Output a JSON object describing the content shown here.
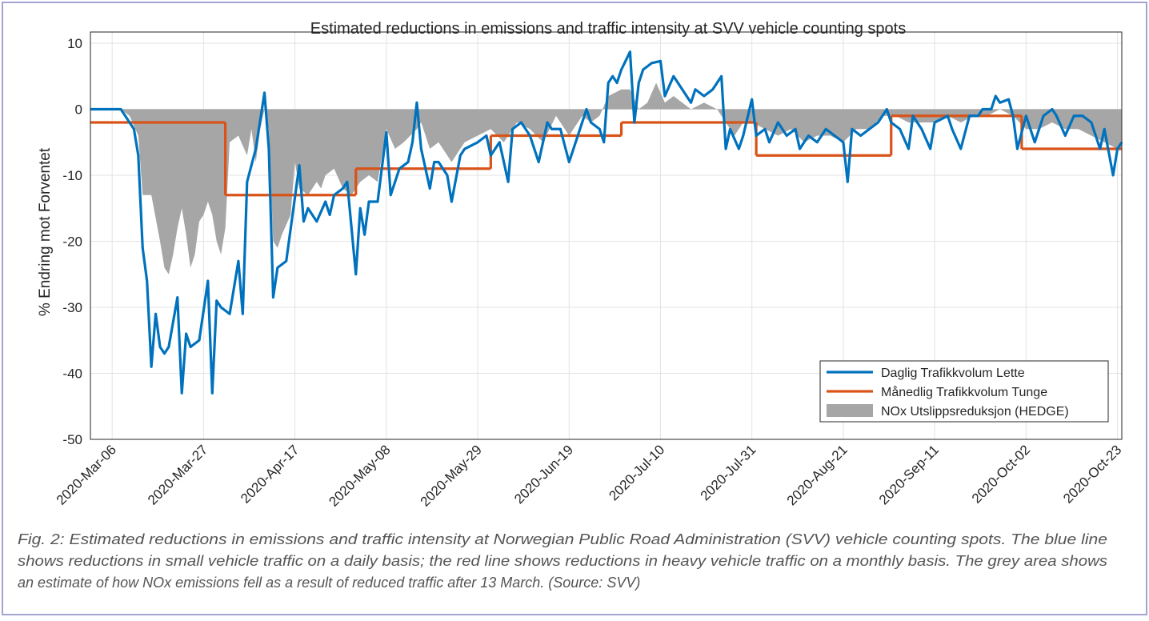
{
  "chart_data": {
    "type": "line",
    "title": "Estimated reductions in emissions and traffic intensity at SVV vehicle counting spots",
    "ylabel": "% Endring mot Forventet",
    "xlim": [
      "2020-03-01",
      "2020-10-24"
    ],
    "ylim": [
      -50,
      11.7
    ],
    "yticks": [
      -50,
      -40,
      -30,
      -20,
      -10,
      0,
      10
    ],
    "xticks": [
      {
        "value": "2020-03-06",
        "label": "2020-Mar-06"
      },
      {
        "value": "2020-03-27",
        "label": "2020-Mar-27"
      },
      {
        "value": "2020-04-17",
        "label": "2020-Apr-17"
      },
      {
        "value": "2020-05-08",
        "label": "2020-May-08"
      },
      {
        "value": "2020-05-29",
        "label": "2020-May-29"
      },
      {
        "value": "2020-06-19",
        "label": "2020-Jun-19"
      },
      {
        "value": "2020-07-10",
        "label": "2020-Jul-10"
      },
      {
        "value": "2020-07-31",
        "label": "2020-Jul-31"
      },
      {
        "value": "2020-08-21",
        "label": "2020-Aug-21"
      },
      {
        "value": "2020-09-11",
        "label": "2020-Sep-11"
      },
      {
        "value": "2020-10-02",
        "label": "2020-Oct-02"
      },
      {
        "value": "2020-10-23",
        "label": "2020-Oct-23"
      }
    ],
    "grid": true,
    "legend": "lower right",
    "series": [
      {
        "name": "Daglig Trafikkvolum Lette",
        "color": "#0072bd",
        "style": "line",
        "x": [
          "2020-03-01",
          "2020-03-08",
          "2020-03-09",
          "2020-03-11",
          "2020-03-12",
          "2020-03-13",
          "2020-03-14",
          "2020-03-15",
          "2020-03-16",
          "2020-03-17",
          "2020-03-18",
          "2020-03-19",
          "2020-03-21",
          "2020-03-22",
          "2020-03-23",
          "2020-03-24",
          "2020-03-26",
          "2020-03-28",
          "2020-03-29",
          "2020-03-30",
          "2020-03-31",
          "2020-04-02",
          "2020-04-04",
          "2020-04-05",
          "2020-04-06",
          "2020-04-08",
          "2020-04-10",
          "2020-04-11",
          "2020-04-12",
          "2020-04-13",
          "2020-04-15",
          "2020-04-18",
          "2020-04-19",
          "2020-04-20",
          "2020-04-22",
          "2020-04-24",
          "2020-04-25",
          "2020-04-26",
          "2020-04-28",
          "2020-04-29",
          "2020-05-01",
          "2020-05-02",
          "2020-05-03",
          "2020-05-04",
          "2020-05-06",
          "2020-05-08",
          "2020-05-09",
          "2020-05-11",
          "2020-05-13",
          "2020-05-14",
          "2020-05-15",
          "2020-05-16",
          "2020-05-18",
          "2020-05-19",
          "2020-05-20",
          "2020-05-22",
          "2020-05-23",
          "2020-05-25",
          "2020-05-26",
          "2020-05-29",
          "2020-05-31",
          "2020-06-01",
          "2020-06-03",
          "2020-06-05",
          "2020-06-06",
          "2020-06-08",
          "2020-06-10",
          "2020-06-12",
          "2020-06-14",
          "2020-06-15",
          "2020-06-17",
          "2020-06-19",
          "2020-06-21",
          "2020-06-23",
          "2020-06-24",
          "2020-06-26",
          "2020-06-27",
          "2020-06-28",
          "2020-06-29",
          "2020-06-30",
          "2020-07-01",
          "2020-07-03",
          "2020-07-04",
          "2020-07-05",
          "2020-07-06",
          "2020-07-08",
          "2020-07-10",
          "2020-07-11",
          "2020-07-13",
          "2020-07-14",
          "2020-07-15",
          "2020-07-17",
          "2020-07-18",
          "2020-07-20",
          "2020-07-22",
          "2020-07-24",
          "2020-07-25",
          "2020-07-26",
          "2020-07-28",
          "2020-07-29",
          "2020-07-31",
          "2020-08-01",
          "2020-08-03",
          "2020-08-04",
          "2020-08-06",
          "2020-08-08",
          "2020-08-10",
          "2020-08-11",
          "2020-08-13",
          "2020-08-15",
          "2020-08-17",
          "2020-08-19",
          "2020-08-21",
          "2020-08-22",
          "2020-08-23",
          "2020-08-25",
          "2020-08-27",
          "2020-08-29",
          "2020-08-31",
          "2020-09-01",
          "2020-09-03",
          "2020-09-05",
          "2020-09-06",
          "2020-09-08",
          "2020-09-10",
          "2020-09-11",
          "2020-09-14",
          "2020-09-15",
          "2020-09-17",
          "2020-09-19",
          "2020-09-21",
          "2020-09-22",
          "2020-09-24",
          "2020-09-25",
          "2020-09-26",
          "2020-09-28",
          "2020-09-29",
          "2020-09-30",
          "2020-10-02",
          "2020-10-04",
          "2020-10-06",
          "2020-10-08",
          "2020-10-09",
          "2020-10-11",
          "2020-10-13",
          "2020-10-15",
          "2020-10-17",
          "2020-10-19",
          "2020-10-20",
          "2020-10-22",
          "2020-10-23",
          "2020-10-24"
        ],
        "values": [
          0,
          0,
          -1,
          -3,
          -7,
          -21,
          -26,
          -39,
          -31,
          -36,
          -37,
          -36,
          -28.5,
          -43,
          -34,
          -36,
          -35,
          -26,
          -43,
          -29,
          -30,
          -31,
          -23,
          -31,
          -11,
          -6,
          2.5,
          -6,
          -28.5,
          -24,
          -23,
          -8.5,
          -17,
          -15,
          -17,
          -14,
          -16,
          -13,
          -12,
          -11,
          -25,
          -15,
          -19,
          -14,
          -14,
          -3.5,
          -13,
          -9,
          -8,
          -5,
          1,
          -6,
          -12,
          -8,
          -8,
          -10,
          -14,
          -7,
          -6,
          -5,
          -4,
          -7,
          -5,
          -11,
          -3,
          -2,
          -4,
          -8,
          -2,
          -3,
          -3,
          -8,
          -4,
          0,
          -2,
          -3,
          -5,
          4,
          5,
          4,
          6,
          8.7,
          -2,
          4,
          6,
          7,
          7.3,
          2,
          5,
          4,
          3,
          1,
          3,
          2,
          3,
          5,
          -6,
          -3,
          -6,
          -4,
          1.5,
          -4,
          -3,
          -5,
          -2,
          -4,
          -3,
          -6,
          -4,
          -5,
          -3,
          -4,
          -5,
          -11,
          -3,
          -4,
          -3,
          -2,
          0,
          -2,
          -3,
          -6,
          -1,
          -3,
          -6,
          -2,
          -1,
          -3,
          -6,
          -1,
          -1,
          0,
          0,
          2,
          1,
          1.5,
          -1,
          -6,
          -1,
          -5,
          -1,
          0,
          -1,
          -4,
          -1,
          -1,
          -2,
          -6,
          -3,
          -10,
          -6,
          -5
        ]
      },
      {
        "name": "Månedlig Trafikkvolum Tunge",
        "color": "#d95319",
        "style": "steps-post",
        "x": [
          "2020-03-01",
          "2020-04-01",
          "2020-05-01",
          "2020-06-01",
          "2020-07-01",
          "2020-08-01",
          "2020-09-01",
          "2020-10-01"
        ],
        "values": [
          -2,
          -13,
          -9,
          -4,
          -2,
          -7,
          -1,
          -6
        ]
      },
      {
        "name": "NOx Utslippsreduksjon (HEDGE)",
        "color": "#a6a6a6",
        "style": "area",
        "x": [
          "2020-03-01",
          "2020-03-08",
          "2020-03-10",
          "2020-03-12",
          "2020-03-13",
          "2020-03-15",
          "2020-03-17",
          "2020-03-18",
          "2020-03-19",
          "2020-03-20",
          "2020-03-21",
          "2020-03-22",
          "2020-03-23",
          "2020-03-24",
          "2020-03-25",
          "2020-03-26",
          "2020-03-27",
          "2020-03-28",
          "2020-03-29",
          "2020-03-30",
          "2020-03-31",
          "2020-04-01",
          "2020-04-02",
          "2020-04-04",
          "2020-04-06",
          "2020-04-07",
          "2020-04-08",
          "2020-04-09",
          "2020-04-10",
          "2020-04-11",
          "2020-04-12",
          "2020-04-13",
          "2020-04-14",
          "2020-04-16",
          "2020-04-17",
          "2020-04-18",
          "2020-04-20",
          "2020-04-22",
          "2020-04-23",
          "2020-04-24",
          "2020-04-26",
          "2020-04-28",
          "2020-04-30",
          "2020-05-02",
          "2020-05-04",
          "2020-05-06",
          "2020-05-08",
          "2020-05-10",
          "2020-05-12",
          "2020-05-15",
          "2020-05-16",
          "2020-05-18",
          "2020-05-20",
          "2020-05-23",
          "2020-05-26",
          "2020-05-29",
          "2020-06-01",
          "2020-06-04",
          "2020-06-07",
          "2020-06-10",
          "2020-06-13",
          "2020-06-16",
          "2020-06-19",
          "2020-06-22",
          "2020-06-24",
          "2020-06-26",
          "2020-06-28",
          "2020-07-01",
          "2020-07-03",
          "2020-07-05",
          "2020-07-07",
          "2020-07-09",
          "2020-07-11",
          "2020-07-13",
          "2020-07-15",
          "2020-07-17",
          "2020-07-20",
          "2020-07-23",
          "2020-07-25",
          "2020-07-27",
          "2020-07-29",
          "2020-07-31",
          "2020-08-03",
          "2020-08-06",
          "2020-08-09",
          "2020-08-12",
          "2020-08-15",
          "2020-08-18",
          "2020-08-21",
          "2020-08-24",
          "2020-08-27",
          "2020-08-30",
          "2020-09-02",
          "2020-09-05",
          "2020-09-08",
          "2020-09-11",
          "2020-09-14",
          "2020-09-17",
          "2020-09-20",
          "2020-09-23",
          "2020-09-26",
          "2020-09-29",
          "2020-10-02",
          "2020-10-05",
          "2020-10-08",
          "2020-10-11",
          "2020-10-14",
          "2020-10-17",
          "2020-10-20",
          "2020-10-23",
          "2020-10-24"
        ],
        "values": [
          0,
          0,
          -1,
          -4,
          -13,
          -13,
          -20,
          -24,
          -25,
          -22,
          -18,
          -15,
          -19,
          -24,
          -22,
          -17,
          -16,
          -14,
          -16,
          -20,
          -22,
          -18,
          -5,
          -4,
          -7,
          -3,
          -8,
          -3,
          0,
          -3,
          -20,
          -21,
          -19,
          -16,
          -8,
          -12,
          -13,
          -11,
          -12,
          -10,
          -9,
          -12,
          -13,
          -11,
          -10,
          -11,
          -3,
          -6,
          -5,
          -3,
          -2,
          -6,
          -5,
          -8,
          -5,
          -4,
          -3,
          -5,
          -2,
          -3,
          -5,
          -1,
          -4,
          -1,
          -2,
          -1,
          2,
          3,
          3,
          0,
          1,
          4,
          1,
          2,
          1,
          0,
          1,
          0,
          -2,
          -4,
          -2,
          -2,
          -3,
          -4,
          -3,
          -5,
          -4,
          -4,
          -5,
          -3,
          -3,
          -1,
          -1,
          -2,
          -2,
          -2,
          -1,
          -2,
          -1,
          -1,
          0,
          -1,
          -3,
          -3,
          -2,
          -3,
          -3,
          -4,
          -5,
          -6,
          -6
        ]
      }
    ],
    "caption": [
      "Fig. 2: Estimated reductions in emissions and traffic intensity at Norwegian Public Road Administration (SVV) vehicle counting spots. The blue line",
      "shows reductions in small vehicle traffic on a daily basis; the red line shows reductions in heavy vehicle traffic on a monthly basis. The grey area shows",
      "an estimate of how NOx emissions fell as a result of reduced traffic after 13 March. (Source: SVV)"
    ]
  }
}
